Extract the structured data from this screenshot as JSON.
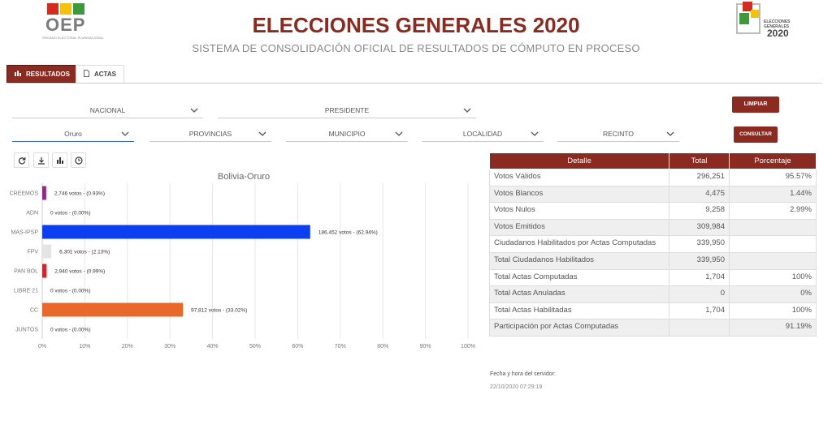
{
  "header": {
    "oep_logo_text": "OEP",
    "oep_logo_subtext": "ÓRGANO ELECTORAL PLURINACIONAL",
    "title": "ELECCIONES GENERALES 2020",
    "subtitle": "SISTEMA DE CONSOLIDACIÓN OFICIAL DE RESULTADOS DE CÓMPUTO EN PROCESO",
    "eg_logo_label_1": "ELECCIONES",
    "eg_logo_label_2": "GENERALES",
    "eg_logo_year": "2020"
  },
  "tabs": [
    {
      "label": "RESULTADOS",
      "icon": "bar-chart-icon",
      "active": true
    },
    {
      "label": "ACTAS",
      "icon": "document-icon",
      "active": false
    }
  ],
  "filters": {
    "scope": "NACIONAL",
    "cargo": "PRESIDENTE",
    "departamento": "Oruro",
    "provincias": "PROVINCIAS",
    "municipio": "MUNICIPIO",
    "localidad": "LOCALIDAD",
    "recinto": "RECINTO"
  },
  "buttons": {
    "limpiar": "LIMPIAR",
    "consultar": "CONSULTAR"
  },
  "toolbar": [
    "refresh-icon",
    "download-icon",
    "bar-chart-icon",
    "clock-icon"
  ],
  "chart_data": {
    "type": "bar",
    "orientation": "horizontal",
    "title": "Bolivia-Oruro",
    "categories": [
      "CREEMOS",
      "ADN",
      "MAS-IPSP",
      "FPV",
      "PAN BOL",
      "LIBRE 21",
      "CC",
      "JUNTOS"
    ],
    "values": [
      0.93,
      0.0,
      62.94,
      2.13,
      0.99,
      0.0,
      33.02,
      0.0
    ],
    "labels": [
      "2,746 votos - (0.93%)",
      "0 votos - (0.00%)",
      "186,452 votos - (62.94%)",
      "6,301 votos - (2.13%)",
      "2,940 votos - (0.99%)",
      "0 votos - (0.00%)",
      "97,812 votos - (33.02%)",
      "0 votos - (0.00%)"
    ],
    "colors": [
      "#8e2a8e",
      "#cccccc",
      "#0b3ff0",
      "#e4e4e4",
      "#d8232a",
      "#cccccc",
      "#e8692b",
      "#cccccc"
    ],
    "xlim": [
      0,
      100
    ],
    "xticks": [
      "0%",
      "10%",
      "20%",
      "30%",
      "40%",
      "50%",
      "60%",
      "70%",
      "80%",
      "90%",
      "100%"
    ],
    "grid": true
  },
  "table": {
    "headers": [
      "Detalle",
      "Total",
      "Porcentaje"
    ],
    "rows": [
      [
        "Votos Válidos",
        "296,251",
        "95.57%"
      ],
      [
        "Votos Blancos",
        "4,475",
        "1.44%"
      ],
      [
        "Votos Nulos",
        "9,258",
        "2.99%"
      ],
      [
        "Votos Emitidos",
        "309,984",
        ""
      ],
      [
        "Ciudadanos Habilitados por Actas Computadas",
        "339,950",
        ""
      ],
      [
        "Total Ciudadanos Habilitados",
        "339,950",
        ""
      ],
      [
        "Total Actas Computadas",
        "1,704",
        "100%"
      ],
      [
        "Total Actas Anuladas",
        "0",
        "0%"
      ],
      [
        "Total Actas Habilitadas",
        "1,704",
        "100%"
      ],
      [
        "Participación por Actas Computadas",
        "",
        "91.19%"
      ]
    ]
  },
  "server": {
    "label": "Fecha y hora del servidor:",
    "datetime": "22/10/2020 07:29:19"
  },
  "colors": {
    "brand": "#8b2a20",
    "accent": "#3a6fb0"
  }
}
